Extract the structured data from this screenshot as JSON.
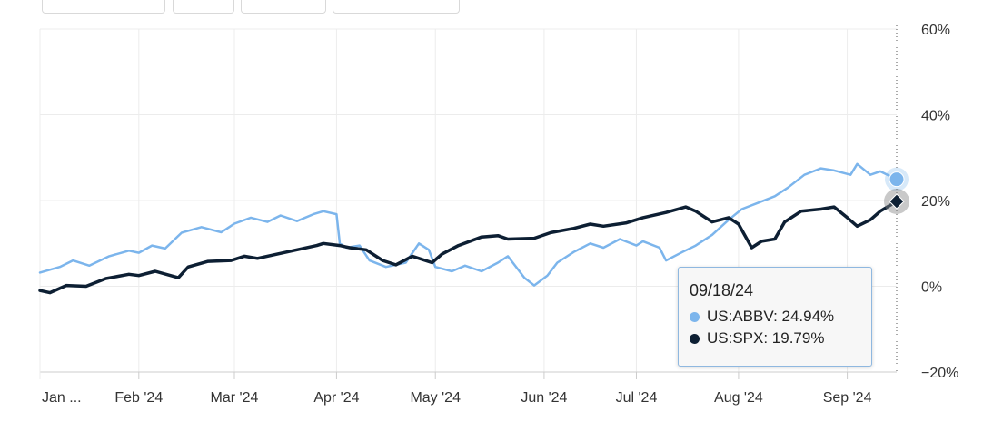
{
  "toolbar": {
    "buttons": [
      "",
      "",
      "",
      ""
    ]
  },
  "colors": {
    "abbv": "#7cb5ec",
    "spx": "#0d1f33",
    "grid": "#ececec",
    "axis": "#cccccc"
  },
  "tooltip": {
    "date": "09/18/24",
    "rows": [
      {
        "label": "US:ABBV: 24.94%",
        "color": "#7cb5ec"
      },
      {
        "label": "US:SPX: 19.79%",
        "color": "#0d1f33"
      }
    ]
  },
  "chart_data": {
    "type": "line",
    "title": "",
    "xlabel": "",
    "ylabel": "",
    "ylim": [
      -20,
      60
    ],
    "y_ticks": [
      "60%",
      "40%",
      "20%",
      "0%",
      "−20%"
    ],
    "y_tick_values": [
      60,
      40,
      20,
      0,
      -20
    ],
    "x_ticks": [
      {
        "label": "Jan ...",
        "date": "2024-01-02"
      },
      {
        "label": "Feb '24",
        "date": "2024-02-01"
      },
      {
        "label": "Mar '24",
        "date": "2024-03-01"
      },
      {
        "label": "Apr '24",
        "date": "2024-04-01"
      },
      {
        "label": "May '24",
        "date": "2024-05-01"
      },
      {
        "label": "Jun '24",
        "date": "2024-06-03"
      },
      {
        "label": "Jul '24",
        "date": "2024-07-01"
      },
      {
        "label": "Aug '24",
        "date": "2024-08-01"
      },
      {
        "label": "Sep '24",
        "date": "2024-09-03"
      }
    ],
    "grid": true,
    "y_axis_position": "right",
    "series": [
      {
        "name": "US:ABBV",
        "color": "#7cb5ec",
        "points": [
          [
            "2024-01-02",
            3.2
          ],
          [
            "2024-01-08",
            4.5
          ],
          [
            "2024-01-12",
            6.0
          ],
          [
            "2024-01-17",
            4.8
          ],
          [
            "2024-01-23",
            7.0
          ],
          [
            "2024-01-29",
            8.3
          ],
          [
            "2024-02-01",
            7.8
          ],
          [
            "2024-02-05",
            9.5
          ],
          [
            "2024-02-09",
            8.8
          ],
          [
            "2024-02-14",
            12.5
          ],
          [
            "2024-02-20",
            13.8
          ],
          [
            "2024-02-26",
            12.6
          ],
          [
            "2024-03-01",
            14.6
          ],
          [
            "2024-03-06",
            16.0
          ],
          [
            "2024-03-11",
            15.0
          ],
          [
            "2024-03-15",
            16.5
          ],
          [
            "2024-03-20",
            15.2
          ],
          [
            "2024-03-25",
            16.8
          ],
          [
            "2024-03-28",
            17.5
          ],
          [
            "2024-04-01",
            16.8
          ],
          [
            "2024-04-02",
            10.0
          ],
          [
            "2024-04-04",
            9.0
          ],
          [
            "2024-04-08",
            9.5
          ],
          [
            "2024-04-11",
            6.0
          ],
          [
            "2024-04-16",
            4.5
          ],
          [
            "2024-04-22",
            5.5
          ],
          [
            "2024-04-26",
            10.0
          ],
          [
            "2024-04-29",
            8.5
          ],
          [
            "2024-05-01",
            4.5
          ],
          [
            "2024-05-06",
            3.5
          ],
          [
            "2024-05-10",
            4.8
          ],
          [
            "2024-05-15",
            3.5
          ],
          [
            "2024-05-20",
            5.5
          ],
          [
            "2024-05-23",
            7.0
          ],
          [
            "2024-05-28",
            2.0
          ],
          [
            "2024-05-31",
            0.2
          ],
          [
            "2024-06-04",
            2.5
          ],
          [
            "2024-06-07",
            5.5
          ],
          [
            "2024-06-12",
            8.0
          ],
          [
            "2024-06-17",
            10.0
          ],
          [
            "2024-06-21",
            9.0
          ],
          [
            "2024-06-26",
            11.0
          ],
          [
            "2024-07-01",
            9.5
          ],
          [
            "2024-07-03",
            10.5
          ],
          [
            "2024-07-08",
            9.0
          ],
          [
            "2024-07-10",
            6.0
          ],
          [
            "2024-07-15",
            8.0
          ],
          [
            "2024-07-19",
            9.5
          ],
          [
            "2024-07-24",
            12.0
          ],
          [
            "2024-07-29",
            15.5
          ],
          [
            "2024-08-02",
            18.0
          ],
          [
            "2024-08-07",
            19.5
          ],
          [
            "2024-08-12",
            21.0
          ],
          [
            "2024-08-16",
            23.0
          ],
          [
            "2024-08-21",
            26.0
          ],
          [
            "2024-08-26",
            27.5
          ],
          [
            "2024-08-30",
            27.0
          ],
          [
            "2024-09-04",
            26.0
          ],
          [
            "2024-09-06",
            28.5
          ],
          [
            "2024-09-10",
            26.0
          ],
          [
            "2024-09-13",
            26.8
          ],
          [
            "2024-09-18",
            24.94
          ]
        ]
      },
      {
        "name": "US:SPX",
        "color": "#0d1f33",
        "points": [
          [
            "2024-01-02",
            -1.0
          ],
          [
            "2024-01-05",
            -1.5
          ],
          [
            "2024-01-10",
            0.2
          ],
          [
            "2024-01-16",
            0.0
          ],
          [
            "2024-01-22",
            1.8
          ],
          [
            "2024-01-29",
            2.8
          ],
          [
            "2024-02-01",
            2.5
          ],
          [
            "2024-02-06",
            3.5
          ],
          [
            "2024-02-13",
            2.0
          ],
          [
            "2024-02-16",
            4.5
          ],
          [
            "2024-02-22",
            5.8
          ],
          [
            "2024-02-29",
            6.0
          ],
          [
            "2024-03-04",
            7.0
          ],
          [
            "2024-03-08",
            6.5
          ],
          [
            "2024-03-14",
            7.5
          ],
          [
            "2024-03-20",
            8.5
          ],
          [
            "2024-03-26",
            9.5
          ],
          [
            "2024-03-28",
            10.0
          ],
          [
            "2024-04-02",
            9.5
          ],
          [
            "2024-04-05",
            9.0
          ],
          [
            "2024-04-10",
            8.5
          ],
          [
            "2024-04-15",
            6.0
          ],
          [
            "2024-04-19",
            5.0
          ],
          [
            "2024-04-24",
            7.0
          ],
          [
            "2024-04-30",
            5.5
          ],
          [
            "2024-05-03",
            7.5
          ],
          [
            "2024-05-08",
            9.5
          ],
          [
            "2024-05-15",
            11.5
          ],
          [
            "2024-05-20",
            11.8
          ],
          [
            "2024-05-23",
            11.0
          ],
          [
            "2024-05-31",
            11.2
          ],
          [
            "2024-06-05",
            12.5
          ],
          [
            "2024-06-12",
            13.5
          ],
          [
            "2024-06-17",
            14.5
          ],
          [
            "2024-06-21",
            14.0
          ],
          [
            "2024-06-28",
            14.8
          ],
          [
            "2024-07-03",
            16.0
          ],
          [
            "2024-07-10",
            17.2
          ],
          [
            "2024-07-16",
            18.5
          ],
          [
            "2024-07-19",
            17.5
          ],
          [
            "2024-07-24",
            15.0
          ],
          [
            "2024-07-29",
            16.0
          ],
          [
            "2024-08-01",
            14.5
          ],
          [
            "2024-08-05",
            9.0
          ],
          [
            "2024-08-08",
            10.5
          ],
          [
            "2024-08-12",
            11.0
          ],
          [
            "2024-08-15",
            15.0
          ],
          [
            "2024-08-20",
            17.5
          ],
          [
            "2024-08-26",
            18.0
          ],
          [
            "2024-08-30",
            18.5
          ],
          [
            "2024-09-03",
            16.0
          ],
          [
            "2024-09-06",
            14.0
          ],
          [
            "2024-09-10",
            15.5
          ],
          [
            "2024-09-13",
            17.5
          ],
          [
            "2024-09-18",
            19.79
          ]
        ]
      }
    ]
  }
}
